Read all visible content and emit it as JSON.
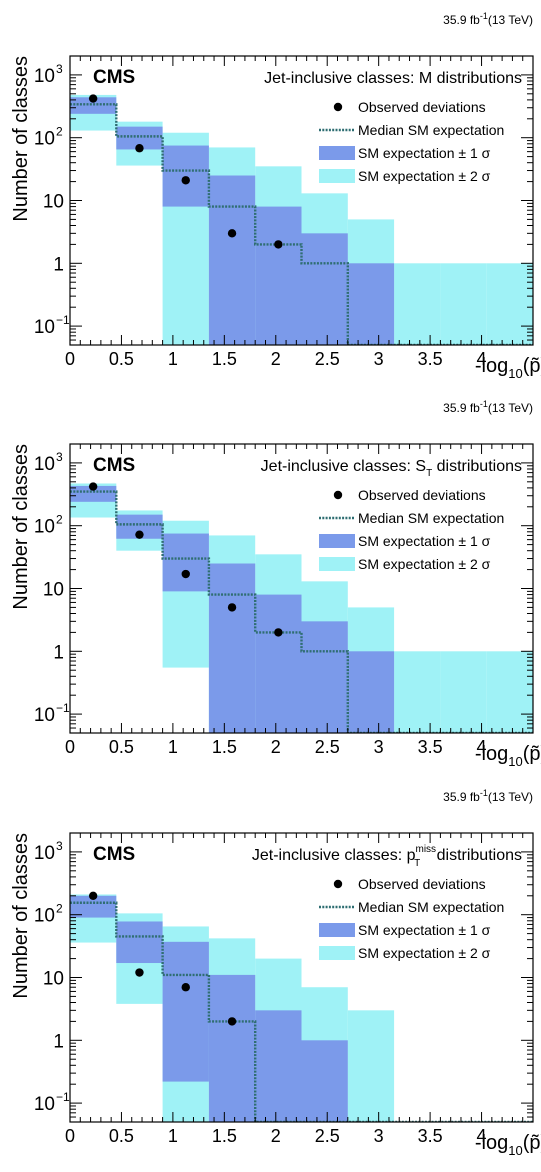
{
  "colors": {
    "band2": "#9ff2f6",
    "band1": "#7b9aea",
    "median": "#2f6e72",
    "observed": "#000000"
  },
  "chart_data": [
    {
      "type": "bar",
      "experiment": "CMS",
      "lumi": "35.9 fb",
      "lumi_sup": "-1",
      "energy": "(13 TeV)",
      "title": "Jet-inclusive classes: M distributions",
      "title_main": "Jet-inclusive classes: M",
      "title_sub": "",
      "title_sup": "",
      "title_tail": " distributions",
      "ylabel": "Number of classes",
      "xlabel_pre": "-log",
      "xlabel_sub": "10",
      "xlabel_post": "(p̃)",
      "xlim": [
        0,
        4.5
      ],
      "ylim": [
        0.05,
        2000
      ],
      "yscale": "log",
      "x_ticks": [
        "0",
        "0.5",
        "1",
        "1.5",
        "2",
        "2.5",
        "3",
        "3.5",
        "4"
      ],
      "y_ticks": [
        {
          "value": 0.1,
          "base": "10",
          "sup": "−1"
        },
        {
          "value": 1,
          "base": "1",
          "sup": ""
        },
        {
          "value": 10,
          "base": "10",
          "sup": ""
        },
        {
          "value": 100,
          "base": "10",
          "sup": "2"
        },
        {
          "value": 1000,
          "base": "10",
          "sup": "3"
        }
      ],
      "legend": {
        "position": "top-right",
        "observed": "Observed deviations",
        "median": "Median SM expectation",
        "band1": "SM expectation ± 1 σ",
        "band2": "SM expectation ± 2 σ"
      },
      "bin_edges": [
        0,
        0.45,
        0.9,
        1.35,
        1.8,
        2.25,
        2.7,
        3.15,
        3.6,
        4.05,
        4.5
      ],
      "median": [
        340,
        105,
        30,
        8,
        2,
        1,
        0.04,
        0.04,
        0.04,
        0.04
      ],
      "band1": [
        [
          240,
          440
        ],
        [
          65,
          150
        ],
        [
          8,
          75
        ],
        [
          0.04,
          25
        ],
        [
          0.04,
          8
        ],
        [
          0.04,
          3
        ],
        [
          0.04,
          1
        ],
        [
          0.04,
          0.04
        ],
        [
          0.04,
          0.04
        ],
        [
          0.04,
          0.04
        ]
      ],
      "band2": [
        [
          130,
          480
        ],
        [
          36,
          180
        ],
        [
          0.04,
          120
        ],
        [
          0.04,
          70
        ],
        [
          0.04,
          35
        ],
        [
          0.04,
          13
        ],
        [
          0.04,
          5
        ],
        [
          0.04,
          1
        ],
        [
          0.04,
          1
        ],
        [
          0.04,
          1
        ]
      ],
      "observed": {
        "x": [
          0.225,
          0.675,
          1.125,
          1.575,
          2.025
        ],
        "y": [
          420,
          68,
          21,
          3,
          2
        ]
      }
    },
    {
      "type": "bar",
      "experiment": "CMS",
      "lumi": "35.9 fb",
      "lumi_sup": "-1",
      "energy": "(13 TeV)",
      "title": "Jet-inclusive classes: ST distributions",
      "title_main": "Jet-inclusive classes: S",
      "title_sub": "T",
      "title_sup": "",
      "title_tail": " distributions",
      "ylabel": "Number of classes",
      "xlabel_pre": "-log",
      "xlabel_sub": "10",
      "xlabel_post": "(p̃)",
      "xlim": [
        0,
        4.5
      ],
      "ylim": [
        0.05,
        2000
      ],
      "yscale": "log",
      "x_ticks": [
        "0",
        "0.5",
        "1",
        "1.5",
        "2",
        "2.5",
        "3",
        "3.5",
        "4"
      ],
      "y_ticks": [
        {
          "value": 0.1,
          "base": "10",
          "sup": "−1"
        },
        {
          "value": 1,
          "base": "1",
          "sup": ""
        },
        {
          "value": 10,
          "base": "10",
          "sup": ""
        },
        {
          "value": 100,
          "base": "10",
          "sup": "2"
        },
        {
          "value": 1000,
          "base": "10",
          "sup": "3"
        }
      ],
      "legend": {
        "position": "top-right",
        "observed": "Observed deviations",
        "median": "Median SM expectation",
        "band1": "SM expectation ± 1 σ",
        "band2": "SM expectation ± 2 σ"
      },
      "bin_edges": [
        0,
        0.45,
        0.9,
        1.35,
        1.8,
        2.25,
        2.7,
        3.15,
        3.6,
        4.05,
        4.5
      ],
      "median": [
        350,
        105,
        30,
        8,
        2,
        1,
        0.04,
        0.04,
        0.04,
        0.04
      ],
      "band1": [
        [
          240,
          430
        ],
        [
          62,
          150
        ],
        [
          9,
          75
        ],
        [
          0.04,
          25
        ],
        [
          0.04,
          8
        ],
        [
          0.04,
          3
        ],
        [
          0.04,
          1
        ],
        [
          0.04,
          0.04
        ],
        [
          0.04,
          0.04
        ],
        [
          0.04,
          0.04
        ]
      ],
      "band2": [
        [
          135,
          470
        ],
        [
          40,
          175
        ],
        [
          0.55,
          120
        ],
        [
          0.04,
          70
        ],
        [
          0.04,
          35
        ],
        [
          0.04,
          13
        ],
        [
          0.04,
          5
        ],
        [
          0.04,
          1
        ],
        [
          0.04,
          1
        ],
        [
          0.04,
          1
        ]
      ],
      "observed": {
        "x": [
          0.225,
          0.675,
          1.125,
          1.575,
          2.025
        ],
        "y": [
          420,
          72,
          17,
          5,
          2
        ]
      }
    },
    {
      "type": "bar",
      "experiment": "CMS",
      "lumi": "35.9 fb",
      "lumi_sup": "-1",
      "energy": "(13 TeV)",
      "title": "Jet-inclusive classes: pT miss distributions",
      "title_main": "Jet-inclusive classes: p",
      "title_sub": "T",
      "title_sup": "miss",
      "title_tail": " distributions",
      "ylabel": "Number of classes",
      "xlabel_pre": "-log",
      "xlabel_sub": "10",
      "xlabel_post": "(p̃)",
      "xlim": [
        0,
        4.5
      ],
      "ylim": [
        0.05,
        2000
      ],
      "yscale": "log",
      "x_ticks": [
        "0",
        "0.5",
        "1",
        "1.5",
        "2",
        "2.5",
        "3",
        "3.5",
        "4"
      ],
      "y_ticks": [
        {
          "value": 0.1,
          "base": "10",
          "sup": "−1"
        },
        {
          "value": 1,
          "base": "1",
          "sup": ""
        },
        {
          "value": 10,
          "base": "10",
          "sup": ""
        },
        {
          "value": 100,
          "base": "10",
          "sup": "2"
        },
        {
          "value": 1000,
          "base": "10",
          "sup": "3"
        }
      ],
      "legend": {
        "position": "top-right",
        "observed": "Observed deviations",
        "median": "Median SM expectation",
        "band1": "SM expectation ± 1 σ",
        "band2": "SM expectation ± 2 σ"
      },
      "bin_edges": [
        0,
        0.45,
        0.9,
        1.35,
        1.8,
        2.25,
        2.7,
        3.15,
        3.6,
        4.05,
        4.5
      ],
      "median": [
        155,
        45,
        11,
        2,
        0.04,
        0.04,
        0.04,
        0.04,
        0.04,
        0.04
      ],
      "band1": [
        [
          90,
          200
        ],
        [
          17,
          78
        ],
        [
          0.22,
          37
        ],
        [
          0.04,
          11
        ],
        [
          0.04,
          3
        ],
        [
          0.04,
          1
        ],
        [
          0.04,
          0.04
        ],
        [
          0.04,
          0.04
        ],
        [
          0.04,
          0.04
        ],
        [
          0.04,
          0.04
        ]
      ],
      "band2": [
        [
          36,
          210
        ],
        [
          3.8,
          105
        ],
        [
          0.04,
          65
        ],
        [
          0.04,
          42
        ],
        [
          0.04,
          20
        ],
        [
          0.04,
          7
        ],
        [
          0.04,
          3
        ],
        [
          0.04,
          0.04
        ],
        [
          0.04,
          0.04
        ],
        [
          0.04,
          0.04
        ]
      ],
      "observed": {
        "x": [
          0.225,
          0.675,
          1.125,
          1.575
        ],
        "y": [
          200,
          12,
          7,
          2
        ]
      }
    }
  ]
}
